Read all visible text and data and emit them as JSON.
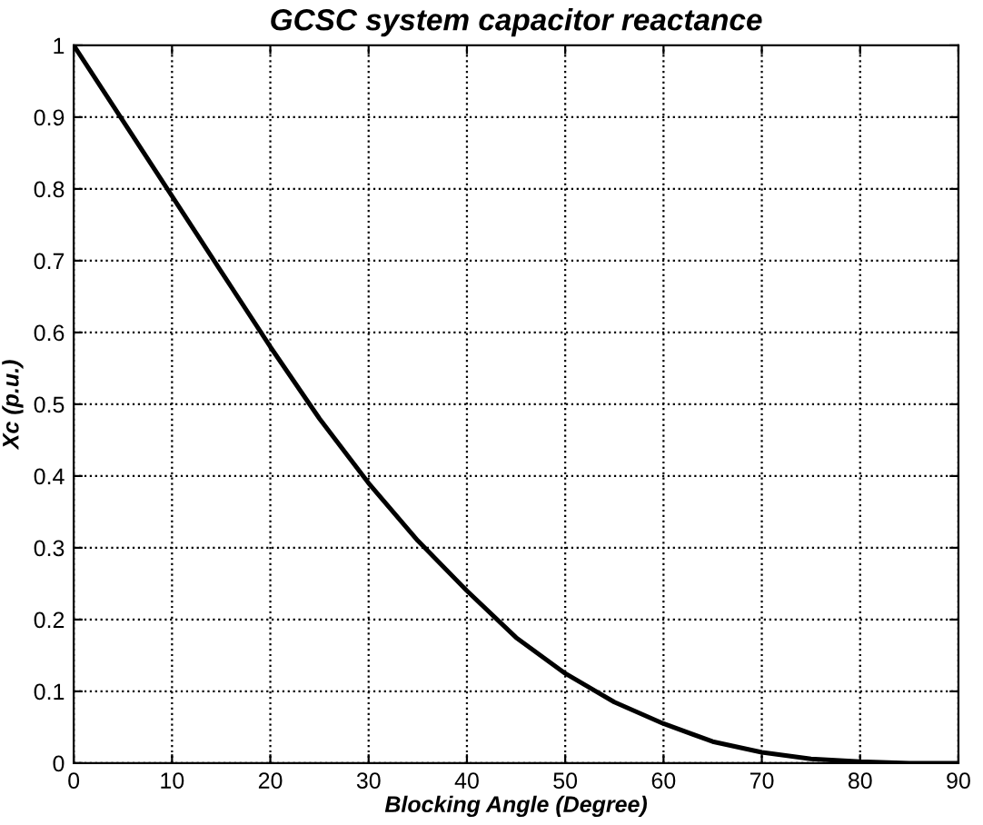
{
  "chart_data": {
    "type": "line",
    "title": "GCSC system capacitor reactance",
    "xlabel": "Blocking Angle (Degree)",
    "ylabel": "Xc (p.u.)",
    "x": [
      0,
      5,
      10,
      15,
      20,
      25,
      30,
      35,
      40,
      45,
      50,
      55,
      60,
      65,
      70,
      75,
      80,
      85,
      90
    ],
    "series": [
      {
        "color": "#000000",
        "values": [
          1,
          0.895,
          0.79,
          0.685,
          0.58,
          0.48,
          0.39,
          0.31,
          0.24,
          0.175,
          0.125,
          0.085,
          0.055,
          0.03,
          0.015,
          0.006,
          0.002,
          0,
          0
        ]
      }
    ],
    "xlim": [
      0,
      90
    ],
    "ylim": [
      0,
      1
    ],
    "xticks": [
      0,
      10,
      20,
      30,
      40,
      50,
      60,
      70,
      80,
      90
    ],
    "yticks": [
      0,
      0.1,
      0.2,
      0.3,
      0.4,
      0.5,
      0.6,
      0.7,
      0.8,
      0.9,
      1
    ],
    "grid": true,
    "line_style": "solid"
  }
}
